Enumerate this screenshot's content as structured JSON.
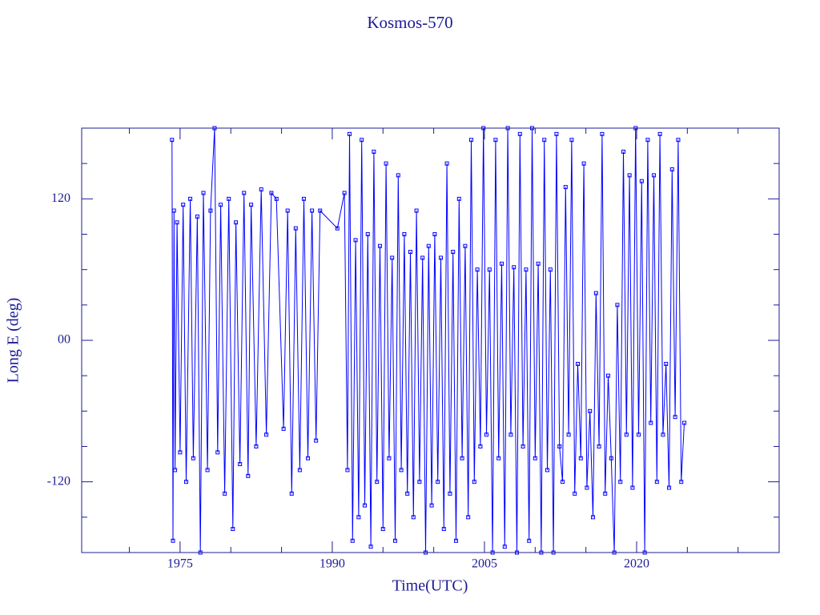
{
  "chart_data": {
    "type": "line",
    "title": "Kosmos-570",
    "xlabel": "Time(UTC)",
    "ylabel": "Long E (deg)",
    "xlim": [
      1965.3,
      2034.05
    ],
    "xticks": [
      1975,
      1990,
      2005,
      2020
    ],
    "xminorticks": [
      1970,
      1980,
      1985,
      1995,
      2000,
      2010,
      2015,
      2025,
      2030
    ],
    "ylim": [
      -180,
      180
    ],
    "yticks": [
      120,
      {
        "value": 0,
        "label": "00"
      },
      -120
    ],
    "yminorticks": [
      150,
      90,
      60,
      30,
      -30,
      -60,
      -90,
      -150
    ],
    "x": [
      1974.2,
      1974.3,
      1974.4,
      1974.5,
      1974.7,
      1975.0,
      1975.3,
      1975.6,
      1976.0,
      1976.3,
      1976.7,
      1977.0,
      1977.3,
      1977.7,
      1978.0,
      1978.4,
      1978.7,
      1979.0,
      1979.4,
      1979.8,
      1980.2,
      1980.5,
      1980.9,
      1981.3,
      1981.7,
      1982.0,
      1982.5,
      1983.0,
      1983.5,
      1984.0,
      1984.5,
      1985.2,
      1985.6,
      1986.0,
      1986.4,
      1986.8,
      1987.2,
      1987.6,
      1988.0,
      1988.4,
      1988.8,
      1990.5,
      1991.2,
      1991.5,
      1991.7,
      1992.0,
      1992.3,
      1992.6,
      1992.9,
      1993.2,
      1993.5,
      1993.8,
      1994.1,
      1994.4,
      1994.7,
      1995.0,
      1995.3,
      1995.6,
      1995.9,
      1996.2,
      1996.5,
      1996.8,
      1997.1,
      1997.4,
      1997.7,
      1998.0,
      1998.3,
      1998.6,
      1998.9,
      1999.2,
      1999.5,
      1999.8,
      2000.1,
      2000.4,
      2000.7,
      2001.0,
      2001.3,
      2001.6,
      2001.9,
      2002.2,
      2002.5,
      2002.8,
      2003.1,
      2003.4,
      2003.7,
      2004.0,
      2004.3,
      2004.6,
      2004.9,
      2005.2,
      2005.5,
      2005.8,
      2006.1,
      2006.4,
      2006.7,
      2007.0,
      2007.3,
      2007.6,
      2007.9,
      2008.2,
      2008.5,
      2008.8,
      2009.1,
      2009.4,
      2009.7,
      2010.0,
      2010.3,
      2010.6,
      2010.9,
      2011.2,
      2011.5,
      2011.8,
      2012.1,
      2012.4,
      2012.7,
      2013.0,
      2013.3,
      2013.6,
      2013.9,
      2014.2,
      2014.5,
      2014.8,
      2015.1,
      2015.4,
      2015.7,
      2016.0,
      2016.3,
      2016.6,
      2016.9,
      2017.2,
      2017.5,
      2017.8,
      2018.1,
      2018.4,
      2018.7,
      2019.0,
      2019.3,
      2019.6,
      2019.9,
      2020.2,
      2020.5,
      2020.8,
      2021.1,
      2021.4,
      2021.7,
      2022.0,
      2022.3,
      2022.6,
      2022.9,
      2023.2,
      2023.5,
      2023.8,
      2024.1,
      2024.4,
      2024.7
    ],
    "series": [
      {
        "color": "#0000ff",
        "values": [
          170,
          -170,
          110,
          -110,
          100,
          -95,
          115,
          -120,
          120,
          -100,
          105,
          -180,
          125,
          -110,
          110,
          180,
          -95,
          115,
          -130,
          120,
          -160,
          100,
          -105,
          125,
          -115,
          115,
          -90,
          128,
          -80,
          125,
          120,
          -75,
          110,
          -130,
          95,
          -110,
          120,
          -100,
          110,
          -85,
          110,
          95,
          125,
          -110,
          175,
          -170,
          85,
          -150,
          170,
          -140,
          90,
          -175,
          160,
          -120,
          80,
          -160,
          150,
          -100,
          70,
          -170,
          140,
          -110,
          90,
          -130,
          75,
          -150,
          110,
          -120,
          70,
          -180,
          80,
          -140,
          90,
          -120,
          70,
          -160,
          150,
          -130,
          75,
          -170,
          120,
          -100,
          80,
          -150,
          170,
          -120,
          60,
          -90,
          180,
          -80,
          60,
          -180,
          170,
          -100,
          65,
          -175,
          180,
          -80,
          62,
          -180,
          175,
          -90,
          60,
          -170,
          180,
          -100,
          65,
          -180,
          170,
          -110,
          60,
          -180,
          175,
          -90,
          -120,
          130,
          -80,
          170,
          -130,
          -20,
          -100,
          150,
          -125,
          -60,
          -150,
          40,
          -90,
          175,
          -130,
          -30,
          -100,
          -180,
          30,
          -120,
          160,
          -80,
          140,
          -125,
          180,
          -80,
          135,
          -180,
          170,
          -70,
          140,
          -120,
          175,
          -80,
          -20,
          -125,
          145,
          -65,
          170,
          -120,
          -70
        ]
      }
    ]
  }
}
